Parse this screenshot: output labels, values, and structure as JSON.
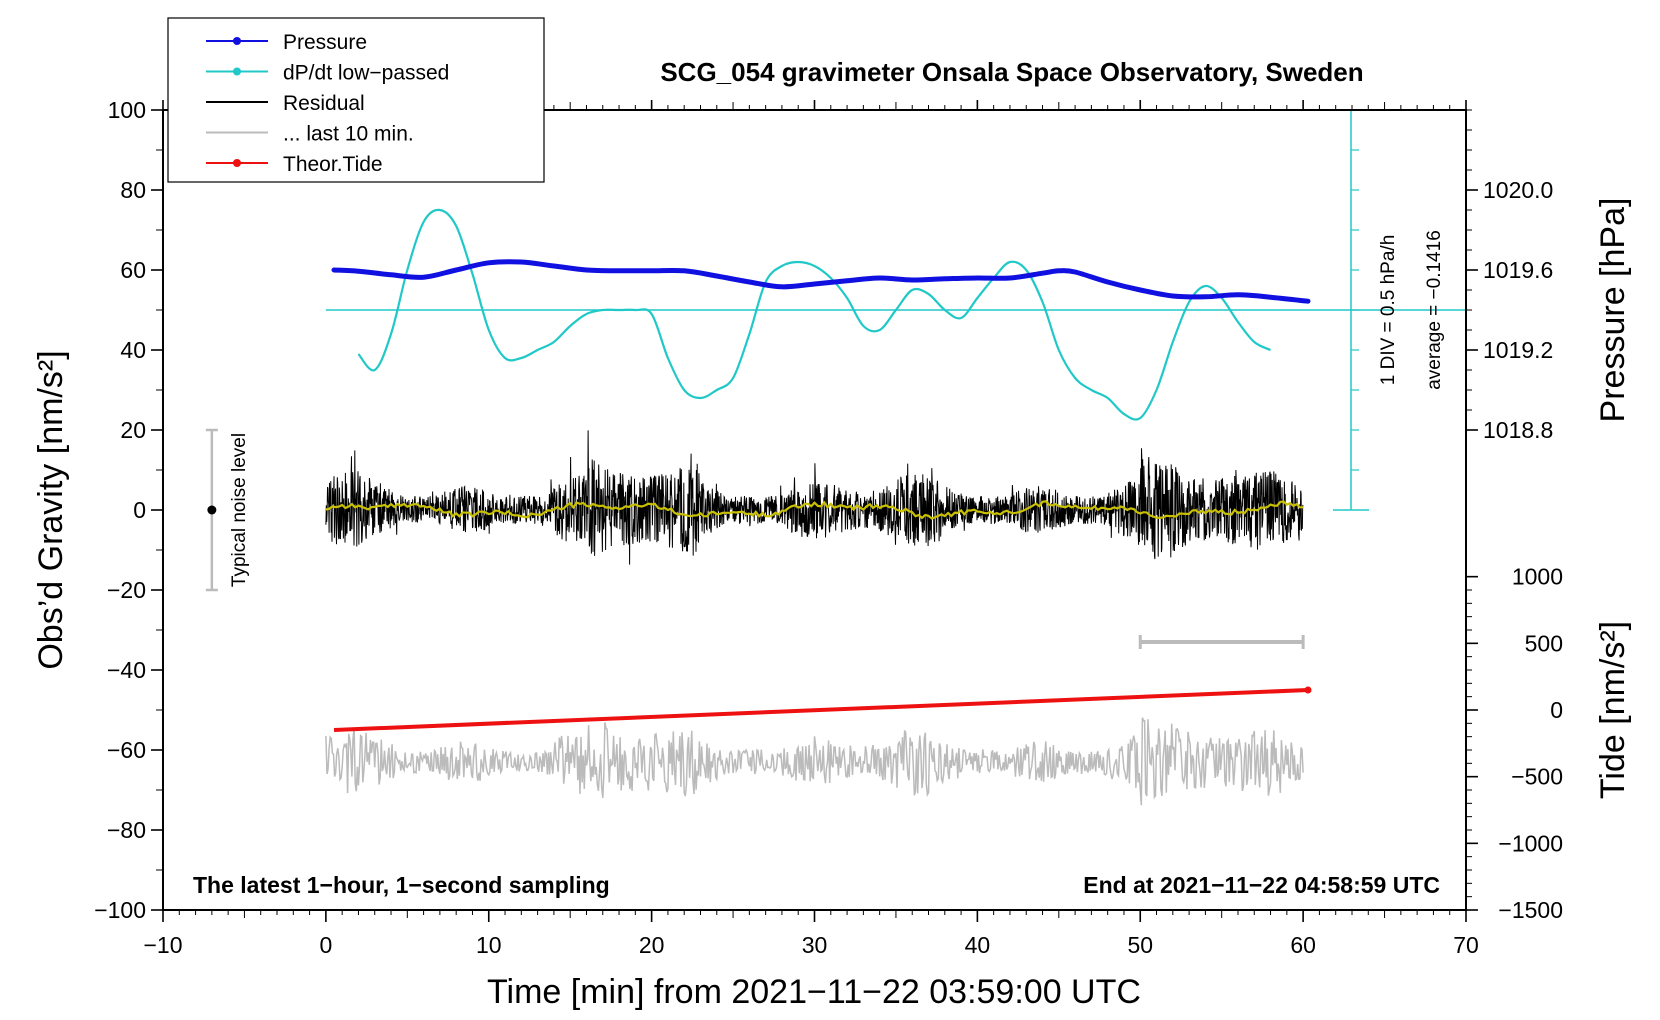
{
  "chart_data": {
    "type": "line",
    "title": "SCG_054 gravimeter Onsala Space Observatory, Sweden",
    "xlabel": "Time [min] from 2021−11−22 03:59:00 UTC",
    "ylabel": "Obs’d Gravity [nm/s²]",
    "ylabel_right_pressure": "Pressure [hPa]",
    "ylabel_right_tide": "Tide [nm/s²]",
    "xlim": [
      -10,
      70
    ],
    "ylim": [
      -100,
      100
    ],
    "xticks": [
      "−10",
      "0",
      "10",
      "20",
      "30",
      "40",
      "50",
      "60",
      "70"
    ],
    "yticks": [
      "100",
      "80",
      "60",
      "40",
      "20",
      "0",
      "−20",
      "−40",
      "−60",
      "−80",
      "−100"
    ],
    "pressure_ticks": [
      "1020.0",
      "1019.6",
      "1019.2",
      "1018.8"
    ],
    "tide_ticks": [
      "1000",
      "500",
      "0",
      "−500",
      "−1000",
      "−1500"
    ],
    "legend": [
      {
        "label": "Pressure",
        "color": "#1010e0",
        "marker": "dot"
      },
      {
        "label": "dP/dt low−passed",
        "color": "#20c8c8",
        "marker": "dot"
      },
      {
        "label": "Residual",
        "color": "#000000",
        "marker": "none"
      },
      {
        "label": "... last 10 min.",
        "color": "#bbbbbb",
        "marker": "none"
      },
      {
        "label": "Theor.Tide",
        "color": "#ee1111",
        "marker": "dot"
      }
    ],
    "series": [
      {
        "name": "Pressure",
        "x": [
          0.5,
          2,
          4,
          6,
          8,
          10,
          12,
          14,
          16,
          18,
          20,
          22,
          24,
          26,
          28,
          30,
          32,
          34,
          36,
          38,
          40,
          42,
          44,
          45,
          46,
          48,
          50,
          52,
          54,
          56,
          58,
          60.3
        ],
        "values": [
          60,
          59.7,
          58.8,
          58.2,
          60,
          61.8,
          62,
          61,
          60,
          59.8,
          59.8,
          59.8,
          58.5,
          57,
          55.8,
          56.5,
          57.3,
          58,
          57.5,
          57.8,
          58,
          58,
          59.2,
          59.8,
          59.5,
          57,
          55,
          53.5,
          53.3,
          53.8,
          53.2,
          52.2
        ]
      },
      {
        "name": "dP/dt low−passed",
        "x": [
          2,
          3,
          4,
          5,
          6,
          7,
          8,
          9,
          10,
          11,
          12,
          13,
          14,
          15,
          16,
          17,
          18,
          19,
          20,
          21,
          22,
          23,
          24,
          25,
          26,
          27,
          28,
          29,
          30,
          31,
          32,
          33,
          34,
          35,
          36,
          37,
          38,
          39,
          40,
          41,
          42,
          43,
          44,
          45,
          46,
          47,
          48,
          49,
          50,
          51,
          52,
          53,
          54,
          55,
          56,
          57,
          58
        ],
        "values": [
          39,
          35,
          44,
          60,
          72,
          75,
          71,
          59,
          45,
          38,
          38,
          40,
          42,
          46,
          49,
          50,
          50,
          50,
          49,
          38,
          30,
          28,
          30,
          33,
          44,
          57,
          61,
          62,
          61,
          58,
          53,
          46,
          45,
          50,
          55,
          54,
          50,
          48,
          53,
          58,
          62,
          60,
          52,
          40,
          33,
          30,
          28,
          24,
          23,
          30,
          42,
          52,
          56,
          53,
          47,
          42,
          40
        ]
      },
      {
        "name": "Residual",
        "x_range": [
          0,
          60
        ],
        "mean": 0,
        "amplitude": 10
      },
      {
        "name": "... last 10 min.",
        "x_range": [
          0,
          60
        ],
        "mean": -63,
        "amplitude": 8
      },
      {
        "name": "Theor.Tide",
        "x": [
          0.5,
          60.3
        ],
        "values": [
          -55,
          -45
        ]
      }
    ],
    "noise_bar": {
      "label": "Typical noise level",
      "x": -7,
      "range": [
        -20,
        20
      ]
    },
    "average_label": "average = −0.1416",
    "div_label": "1 DIV = 0.5 hPa/h",
    "footer_left": "The latest 1−hour, 1−second sampling",
    "footer_right": "End at 2021−11−22 04:58:59 UTC"
  }
}
